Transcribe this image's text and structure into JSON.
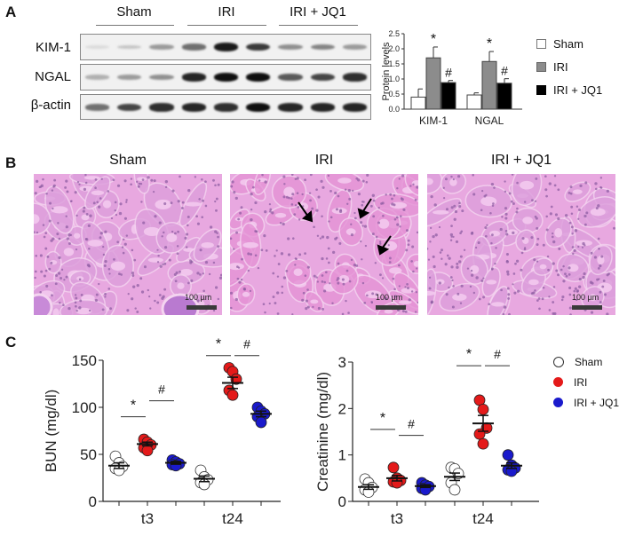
{
  "panels": {
    "A": {
      "letter": "A",
      "blot": {
        "groups": [
          "Sham",
          "IRI",
          "IRI + JQ1"
        ],
        "rows": [
          "KIM-1",
          "NGAL",
          "β-actin"
        ],
        "lanes_per_group": 3,
        "band_intensity": {
          "KIM-1": [
            0.05,
            0.15,
            0.35,
            0.55,
            0.95,
            0.8,
            0.4,
            0.45,
            0.35
          ],
          "NGAL": [
            0.25,
            0.35,
            0.4,
            0.9,
            1.0,
            1.0,
            0.65,
            0.75,
            0.85
          ],
          "β-actin": [
            0.55,
            0.75,
            0.85,
            0.9,
            0.85,
            1.0,
            0.9,
            0.9,
            0.9
          ]
        }
      },
      "legend": [
        {
          "label": "Sham",
          "color": "#ffffff"
        },
        {
          "label": "IRI",
          "color": "#8c8c8c"
        },
        {
          "label": "IRI + JQ1",
          "color": "#000000"
        }
      ]
    },
    "B": {
      "letter": "B",
      "images": [
        {
          "title": "Sham",
          "scale_label": "100 µm",
          "arrows": 0
        },
        {
          "title": "IRI",
          "scale_label": "100 µm",
          "arrows": 3
        },
        {
          "title": "IRI + JQ1",
          "scale_label": "100 µm",
          "arrows": 0
        }
      ]
    },
    "C": {
      "letter": "C",
      "legend": [
        {
          "label": "Sham",
          "color": "#ffffff"
        },
        {
          "label": "IRI",
          "color": "#e41a1a"
        },
        {
          "label": "IRI + JQ1",
          "color": "#1a1acc"
        }
      ]
    }
  },
  "chart_data": [
    {
      "type": "bar",
      "title": "",
      "categories": [
        "KIM-1",
        "NGAL"
      ],
      "series": [
        {
          "name": "Sham",
          "values": [
            0.4,
            0.47
          ],
          "errors": [
            0.27,
            0.07
          ],
          "color": "#ffffff"
        },
        {
          "name": "IRI",
          "values": [
            1.7,
            1.58
          ],
          "errors": [
            0.36,
            0.33
          ],
          "color": "#8c8c8c"
        },
        {
          "name": "IRI + JQ1",
          "values": [
            0.88,
            0.86
          ],
          "errors": [
            0.07,
            0.15
          ],
          "color": "#000000"
        }
      ],
      "annotations": [
        {
          "category": "KIM-1",
          "series": "IRI",
          "text": "*"
        },
        {
          "category": "KIM-1",
          "series": "IRI + JQ1",
          "text": "#"
        },
        {
          "category": "NGAL",
          "series": "IRI",
          "text": "*"
        },
        {
          "category": "NGAL",
          "series": "IRI + JQ1",
          "text": "#"
        }
      ],
      "xlabel": "",
      "ylabel": "Protein levels",
      "ylim": [
        0,
        2.5
      ],
      "yticks": [
        "0.0",
        "0.5",
        "1.0",
        "1.5",
        "2.0",
        "2.5"
      ],
      "legend_position": "right",
      "grid": false
    },
    {
      "type": "scatter",
      "title": "",
      "categories": [
        "t3",
        "t24"
      ],
      "ylabel": "BUN (mg/dl)",
      "xlabel": "",
      "ylim": [
        0,
        150
      ],
      "yticks": [
        "0",
        "50",
        "100",
        "150"
      ],
      "series": [
        {
          "name": "Sham",
          "color": "#ffffff",
          "points": {
            "t3": [
              48,
              41,
              37,
              35,
              33
            ],
            "t24": [
              33,
              26,
              23,
              20,
              18
            ]
          },
          "mean": {
            "t3": 38,
            "t24": 24
          },
          "sem": {
            "t3": 3,
            "t24": 3
          }
        },
        {
          "name": "IRI",
          "color": "#e41a1a",
          "points": {
            "t3": [
              66,
              63,
              60,
              57,
              54
            ],
            "t24": [
              142,
              138,
              130,
              118,
              113
            ]
          },
          "mean": {
            "t3": 61,
            "t24": 126
          },
          "sem": {
            "t3": 2,
            "t24": 6
          }
        },
        {
          "name": "IRI + JQ1",
          "color": "#1a1acc",
          "points": {
            "t3": [
              44,
              42,
              40,
              39,
              38
            ],
            "t24": [
              100,
              96,
              93,
              90,
              84
            ]
          },
          "mean": {
            "t3": 41,
            "t24": 93
          },
          "sem": {
            "t3": 1.5,
            "t24": 3
          }
        }
      ],
      "annotations": [
        {
          "text": "*",
          "between": [
            "Sham t3",
            "IRI t3"
          ],
          "y": 90
        },
        {
          "text": "#",
          "between": [
            "IRI t3",
            "IRI + JQ1 t3"
          ],
          "y": 107
        },
        {
          "text": "*",
          "between": [
            "Sham t24",
            "IRI t24"
          ],
          "y": 155
        },
        {
          "text": "#",
          "between": [
            "IRI t24",
            "IRI + JQ1 t24"
          ],
          "y": 155
        }
      ],
      "legend_position": "none",
      "grid": false
    },
    {
      "type": "scatter",
      "title": "",
      "categories": [
        "t3",
        "t24"
      ],
      "ylabel": "Creatinine  (mg/dl)",
      "xlabel": "",
      "ylim": [
        0,
        3
      ],
      "yticks": [
        "0",
        "1",
        "2",
        "3"
      ],
      "series": [
        {
          "name": "Sham",
          "color": "#ffffff",
          "points": {
            "t3": [
              0.48,
              0.4,
              0.3,
              0.25,
              0.2
            ],
            "t24": [
              0.73,
              0.7,
              0.6,
              0.4,
              0.25
            ]
          },
          "mean": {
            "t3": 0.31,
            "t24": 0.53
          },
          "sem": {
            "t3": 0.05,
            "t24": 0.08
          }
        },
        {
          "name": "IRI",
          "color": "#e41a1a",
          "points": {
            "t3": [
              0.73,
              0.5,
              0.45,
              0.42,
              0.4
            ],
            "t24": [
              2.18,
              1.98,
              1.58,
              1.45,
              1.24
            ]
          },
          "mean": {
            "t3": 0.5,
            "t24": 1.68
          },
          "sem": {
            "t3": 0.06,
            "t24": 0.17
          }
        },
        {
          "name": "IRI + JQ1",
          "color": "#1a1acc",
          "points": {
            "t3": [
              0.4,
              0.35,
              0.32,
              0.28,
              0.25
            ],
            "t24": [
              1.0,
              0.78,
              0.72,
              0.68,
              0.65
            ]
          },
          "mean": {
            "t3": 0.33,
            "t24": 0.77
          },
          "sem": {
            "t3": 0.03,
            "t24": 0.06
          }
        }
      ],
      "annotations": [
        {
          "text": "*",
          "between": [
            "Sham t3",
            "IRI t3"
          ],
          "y": 1.55
        },
        {
          "text": "#",
          "between": [
            "IRI t3",
            "IRI + JQ1 t3"
          ],
          "y": 1.42
        },
        {
          "text": "*",
          "between": [
            "Sham t24",
            "IRI t24"
          ],
          "y": 2.92
        },
        {
          "text": "#",
          "between": [
            "IRI t24",
            "IRI + JQ1 t24"
          ],
          "y": 2.92
        }
      ],
      "legend": [
        "Sham",
        "IRI",
        "IRI + JQ1"
      ],
      "legend_position": "right",
      "grid": false
    }
  ]
}
